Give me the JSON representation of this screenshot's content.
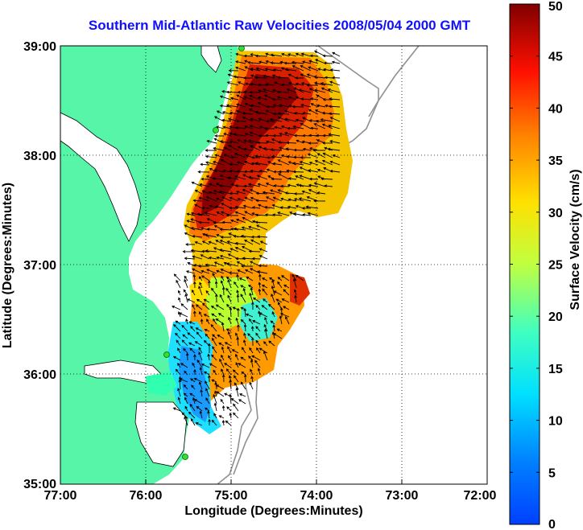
{
  "title": "Southern Mid-Atlantic Raw Velocities 2008/05/04 2000 GMT",
  "x_axis": {
    "label": "Longitude (Degrees:Minutes)",
    "ticks": [
      "77:00",
      "76:00",
      "75:00",
      "74:00",
      "73:00",
      "72:00"
    ],
    "range": [
      -77,
      -72
    ]
  },
  "y_axis": {
    "label": "Latitude (Degrees:Minutes)",
    "ticks": [
      "39:00",
      "38:00",
      "37:00",
      "36:00",
      "35:00"
    ],
    "range": [
      35,
      39
    ]
  },
  "colorbar": {
    "label": "Surface Velocity (cm/s)",
    "ticks": [
      "50",
      "45",
      "40",
      "35",
      "30",
      "25",
      "20",
      "15",
      "10",
      "5",
      "0"
    ],
    "range": [
      0,
      50
    ],
    "colormap": "jet"
  },
  "colors": {
    "land": "#57f5a8",
    "title": "#1010ff",
    "arrows": "#000000",
    "bathymetry": "#909090",
    "grid": "#000000"
  },
  "map_features": {
    "grid": "dotted",
    "radar_sites_marker_color": "#33dd33",
    "land_label": "land",
    "arrows": "black velocity vectors",
    "bathymetry_contours": "gray"
  }
}
